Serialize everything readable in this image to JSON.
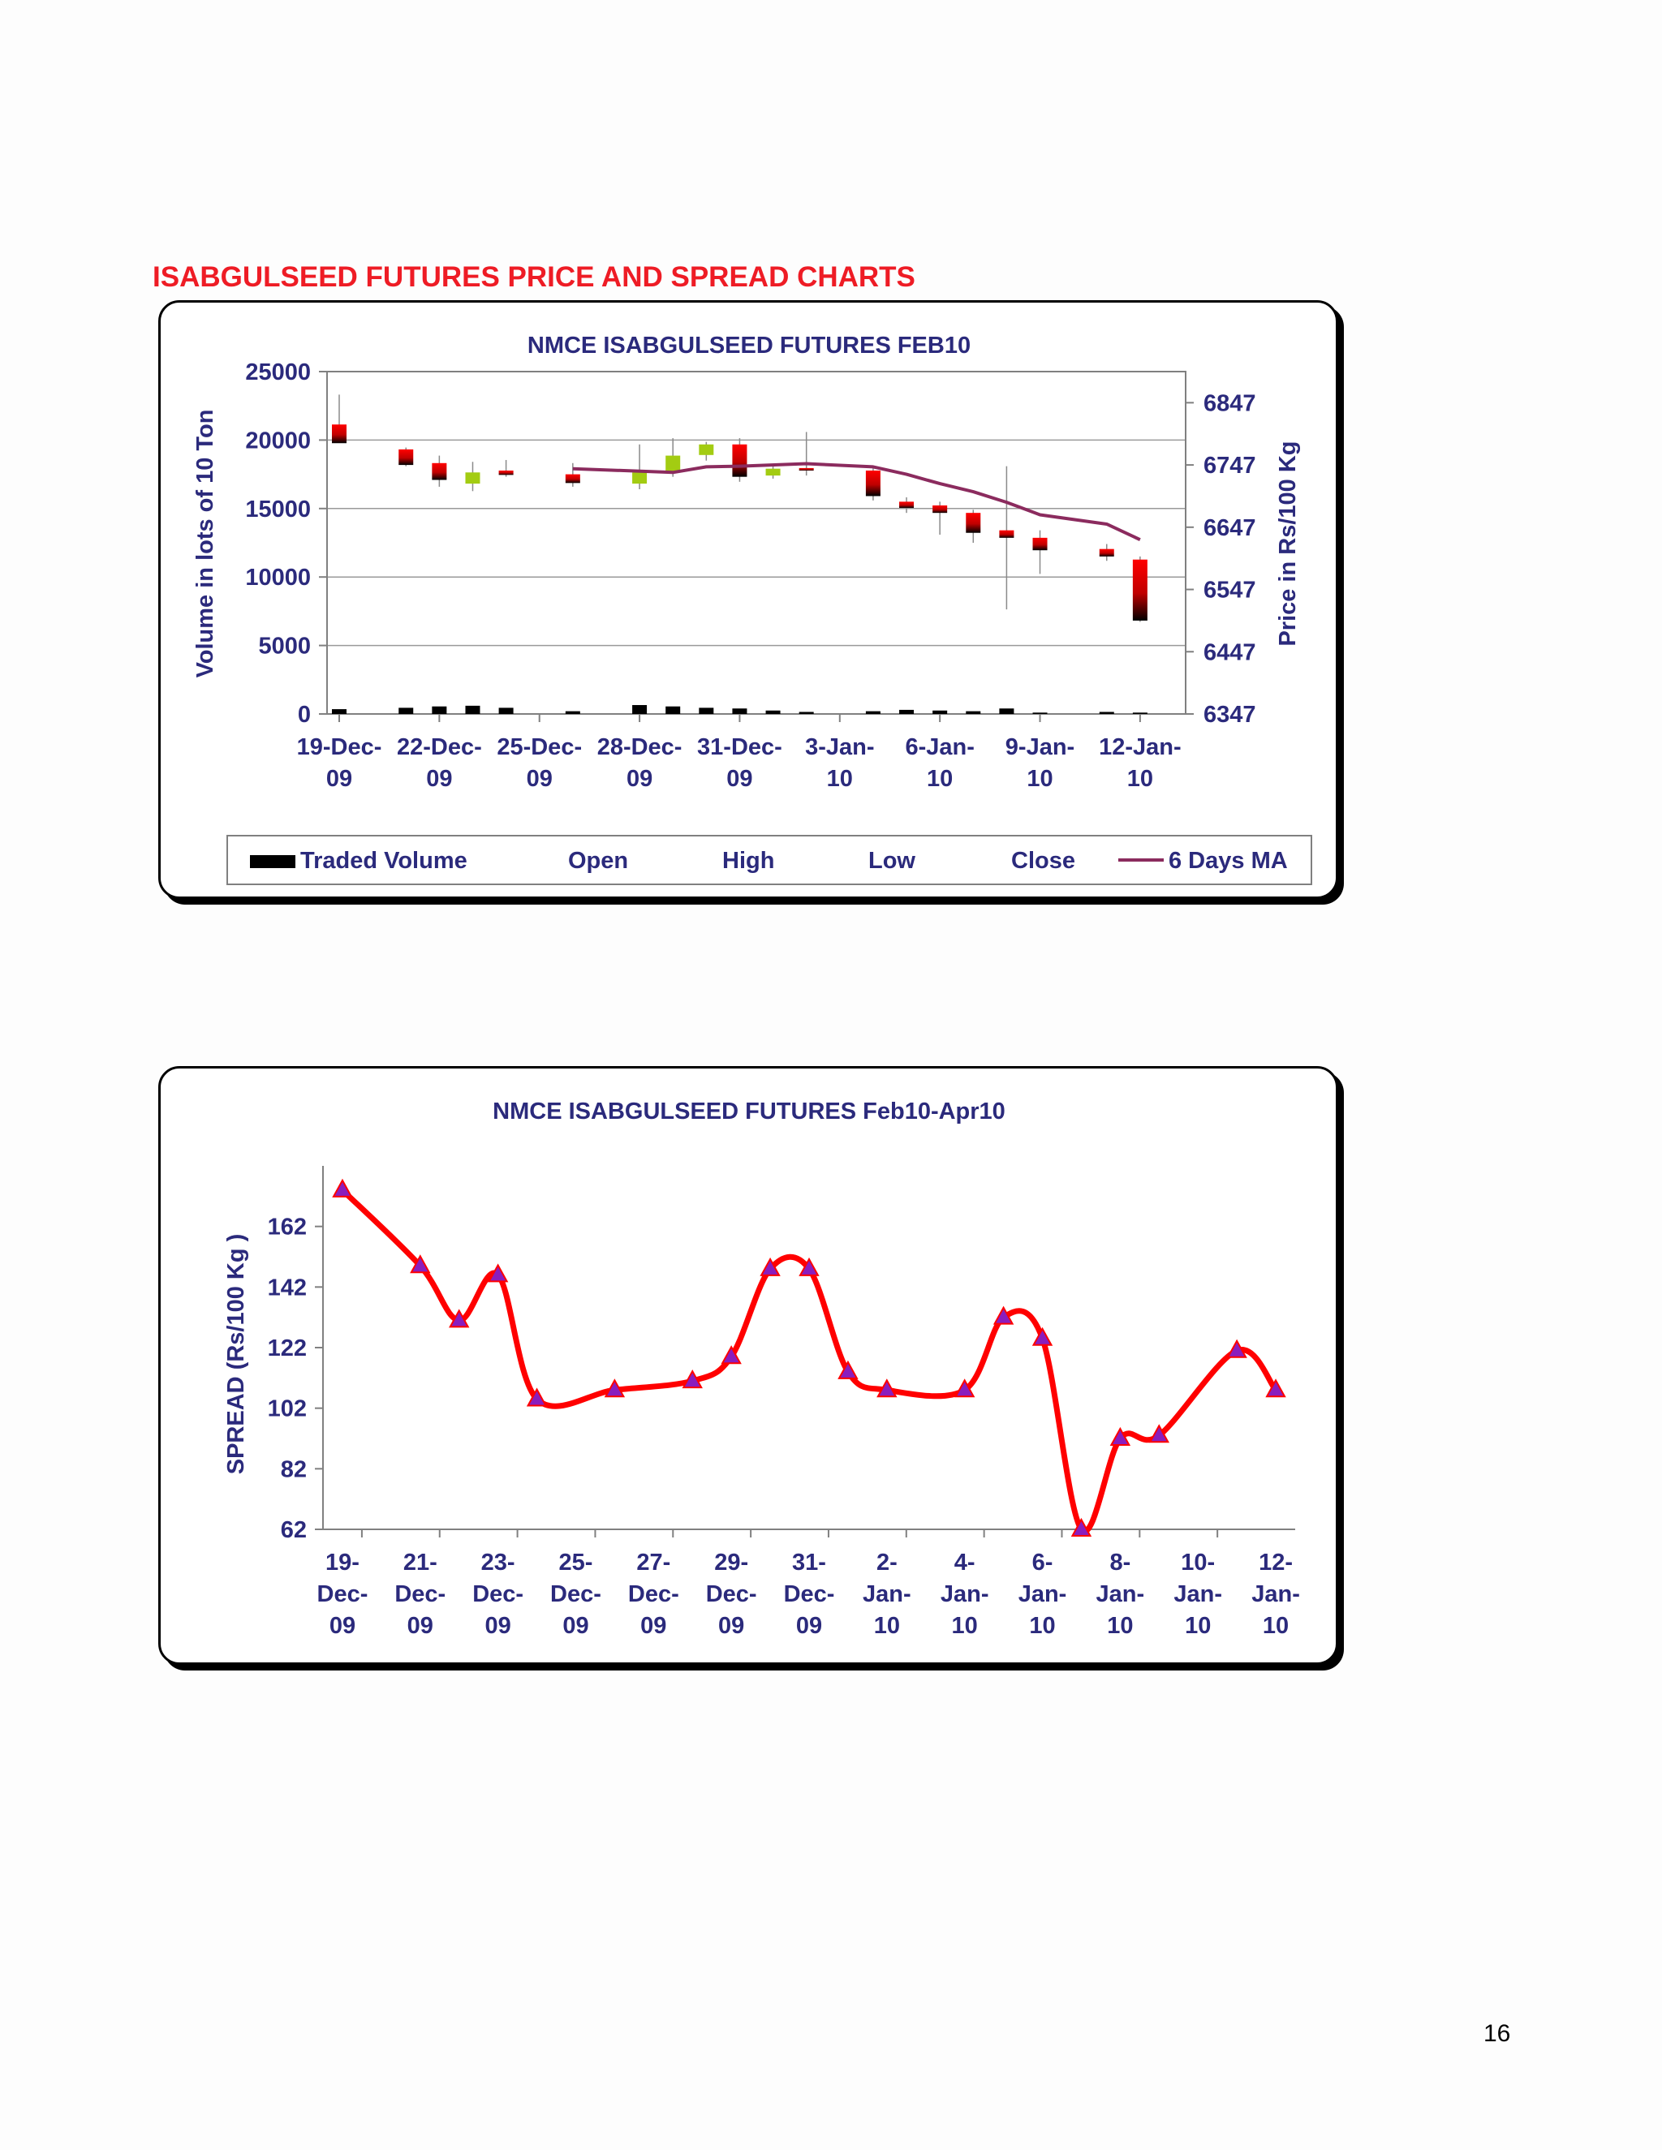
{
  "page": {
    "heading": "ISABGULSEED FUTURES PRICE AND SPREAD CHARTS",
    "heading_color": "#ee1c25",
    "page_number": "16"
  },
  "colors": {
    "text": "#2b2a7c",
    "bearish_top": "#ff0000",
    "bearish_bottom": "#000000",
    "bullish": "#a3cc12",
    "ma_line": "#8b2b5e",
    "spread_line": "#ff0000",
    "spread_marker": "#8a1dbd",
    "volume_bar": "#000000"
  },
  "chart_data": [
    {
      "type": "candlestick",
      "title": "NMCE ISABGULSEED FUTURES FEB10",
      "ylabel_left": "Volume in lots of 10 Ton",
      "ylabel_right": "Price in Rs/100 Kg",
      "ylim_left": [
        0,
        25000
      ],
      "ylim_right": [
        6347,
        6897
      ],
      "yticks_left": [
        "0",
        "5000",
        "10000",
        "15000",
        "20000",
        "25000"
      ],
      "yticks_right": [
        "6347",
        "6447",
        "6547",
        "6647",
        "6747",
        "6847"
      ],
      "x_range": [
        0,
        25
      ],
      "x_tick_positions": [
        0,
        3,
        6,
        9,
        12,
        15,
        18,
        21,
        24
      ],
      "x_tick_labels": [
        [
          "19-Dec-",
          "09"
        ],
        [
          "22-Dec-",
          "09"
        ],
        [
          "25-Dec-",
          "09"
        ],
        [
          "28-Dec-",
          "09"
        ],
        [
          "31-Dec-",
          "09"
        ],
        [
          "3-Jan-",
          "10"
        ],
        [
          "6-Jan-",
          "10"
        ],
        [
          "9-Jan-",
          "10"
        ],
        [
          "12-Jan-",
          "10"
        ]
      ],
      "legend": [
        "Traded Volume",
        "Open",
        "High",
        "Low",
        "Close",
        "6 Days MA"
      ],
      "legend_position": "bottom",
      "grid": true,
      "candles": [
        {
          "day": 0,
          "date": "19-Dec-09",
          "open": 6812,
          "high": 6860,
          "low": 6792,
          "close": 6782,
          "volume": 350
        },
        {
          "day": 2,
          "date": "21-Dec-09",
          "open": 6772,
          "high": 6775,
          "low": 6745,
          "close": 6747,
          "volume": 450
        },
        {
          "day": 3,
          "date": "22-Dec-09",
          "open": 6750,
          "high": 6762,
          "low": 6712,
          "close": 6723,
          "volume": 550
        },
        {
          "day": 4,
          "date": "23-Dec-09",
          "open": 6717,
          "high": 6752,
          "low": 6705,
          "close": 6735,
          "volume": 600
        },
        {
          "day": 5,
          "date": "24-Dec-09",
          "open": 6738,
          "high": 6755,
          "low": 6728,
          "close": 6731,
          "volume": 450
        },
        {
          "day": 7,
          "date": "26-Dec-09",
          "open": 6732,
          "high": 6750,
          "low": 6712,
          "close": 6718,
          "volume": 200
        },
        {
          "day": 9,
          "date": "28-Dec-09",
          "open": 6717,
          "high": 6780,
          "low": 6708,
          "close": 6735,
          "volume": 650
        },
        {
          "day": 10,
          "date": "29-Dec-09",
          "open": 6735,
          "high": 6790,
          "low": 6728,
          "close": 6762,
          "volume": 550
        },
        {
          "day": 11,
          "date": "30-Dec-09",
          "open": 6763,
          "high": 6784,
          "low": 6754,
          "close": 6780,
          "volume": 450
        },
        {
          "day": 12,
          "date": "31-Dec-09",
          "open": 6780,
          "high": 6790,
          "low": 6720,
          "close": 6728,
          "volume": 400
        },
        {
          "day": 13,
          "date": "1-Jan-10",
          "open": 6730,
          "high": 6747,
          "low": 6725,
          "close": 6741,
          "volume": 250
        },
        {
          "day": 14,
          "date": "2-Jan-10",
          "open": 6742,
          "high": 6800,
          "low": 6730,
          "close": 6738,
          "volume": 150
        },
        {
          "day": 16,
          "date": "4-Jan-10",
          "open": 6738,
          "high": 6745,
          "low": 6690,
          "close": 6697,
          "volume": 200
        },
        {
          "day": 17,
          "date": "5-Jan-10",
          "open": 6688,
          "high": 6695,
          "low": 6670,
          "close": 6678,
          "volume": 300
        },
        {
          "day": 18,
          "date": "6-Jan-10",
          "open": 6682,
          "high": 6688,
          "low": 6635,
          "close": 6670,
          "volume": 250
        },
        {
          "day": 19,
          "date": "7-Jan-10",
          "open": 6670,
          "high": 6675,
          "low": 6622,
          "close": 6638,
          "volume": 200
        },
        {
          "day": 20,
          "date": "8-Jan-10",
          "open": 6642,
          "high": 6745,
          "low": 6515,
          "close": 6630,
          "volume": 400
        },
        {
          "day": 21,
          "date": "9-Jan-10",
          "open": 6630,
          "high": 6642,
          "low": 6572,
          "close": 6610,
          "volume": 100
        },
        {
          "day": 23,
          "date": "11-Jan-10",
          "open": 6612,
          "high": 6620,
          "low": 6593,
          "close": 6600,
          "volume": 150
        },
        {
          "day": 24,
          "date": "12-Jan-10",
          "open": 6595,
          "high": 6600,
          "low": 6495,
          "close": 6497,
          "volume": 100
        }
      ],
      "moving_average": {
        "name": "6 Days MA",
        "x": [
          7,
          10,
          11,
          12,
          14,
          16,
          17,
          18,
          19,
          20,
          21,
          23,
          24
        ],
        "y": [
          6741,
          6735,
          6744,
          6745,
          6749,
          6744,
          6732,
          6717,
          6704,
          6687,
          6667,
          6652,
          6627
        ]
      }
    },
    {
      "type": "line",
      "title": "NMCE ISABGULSEED FUTURES Feb10-Apr10",
      "xlabel": "",
      "ylabel": "SPREAD (Rs/100 Kg    )",
      "ylim": [
        62,
        182
      ],
      "yticks": [
        "62",
        "82",
        "102",
        "122",
        "142",
        "162"
      ],
      "x_range": [
        -0.5,
        24.5
      ],
      "x_tick_positions": [
        0,
        2,
        4,
        6,
        8,
        10,
        12,
        14,
        16,
        18,
        20,
        22,
        24
      ],
      "x_tick_labels": [
        [
          "19-",
          "Dec-",
          "09"
        ],
        [
          "21-",
          "Dec-",
          "09"
        ],
        [
          "23-",
          "Dec-",
          "09"
        ],
        [
          "25-",
          "Dec-",
          "09"
        ],
        [
          "27-",
          "Dec-",
          "09"
        ],
        [
          "29-",
          "Dec-",
          "09"
        ],
        [
          "31-",
          "Dec-",
          "09"
        ],
        [
          "2-",
          "Jan-",
          "10"
        ],
        [
          "4-",
          "Jan-",
          "10"
        ],
        [
          "6-",
          "Jan-",
          "10"
        ],
        [
          "8-",
          "Jan-",
          "10"
        ],
        [
          "10-",
          "Jan-",
          "10"
        ],
        [
          "12-",
          "Jan-",
          "10"
        ]
      ],
      "grid": false,
      "series": [
        {
          "x": [
            0,
            2,
            3,
            4,
            5,
            7,
            9,
            10,
            11,
            12,
            13,
            14,
            16,
            17,
            18,
            19,
            20,
            21,
            23,
            24
          ],
          "values": [
            174,
            149,
            131,
            146,
            105,
            108,
            111,
            119,
            148,
            148,
            114,
            108,
            108,
            132,
            125,
            62,
            92,
            93,
            121,
            108
          ]
        }
      ]
    }
  ]
}
